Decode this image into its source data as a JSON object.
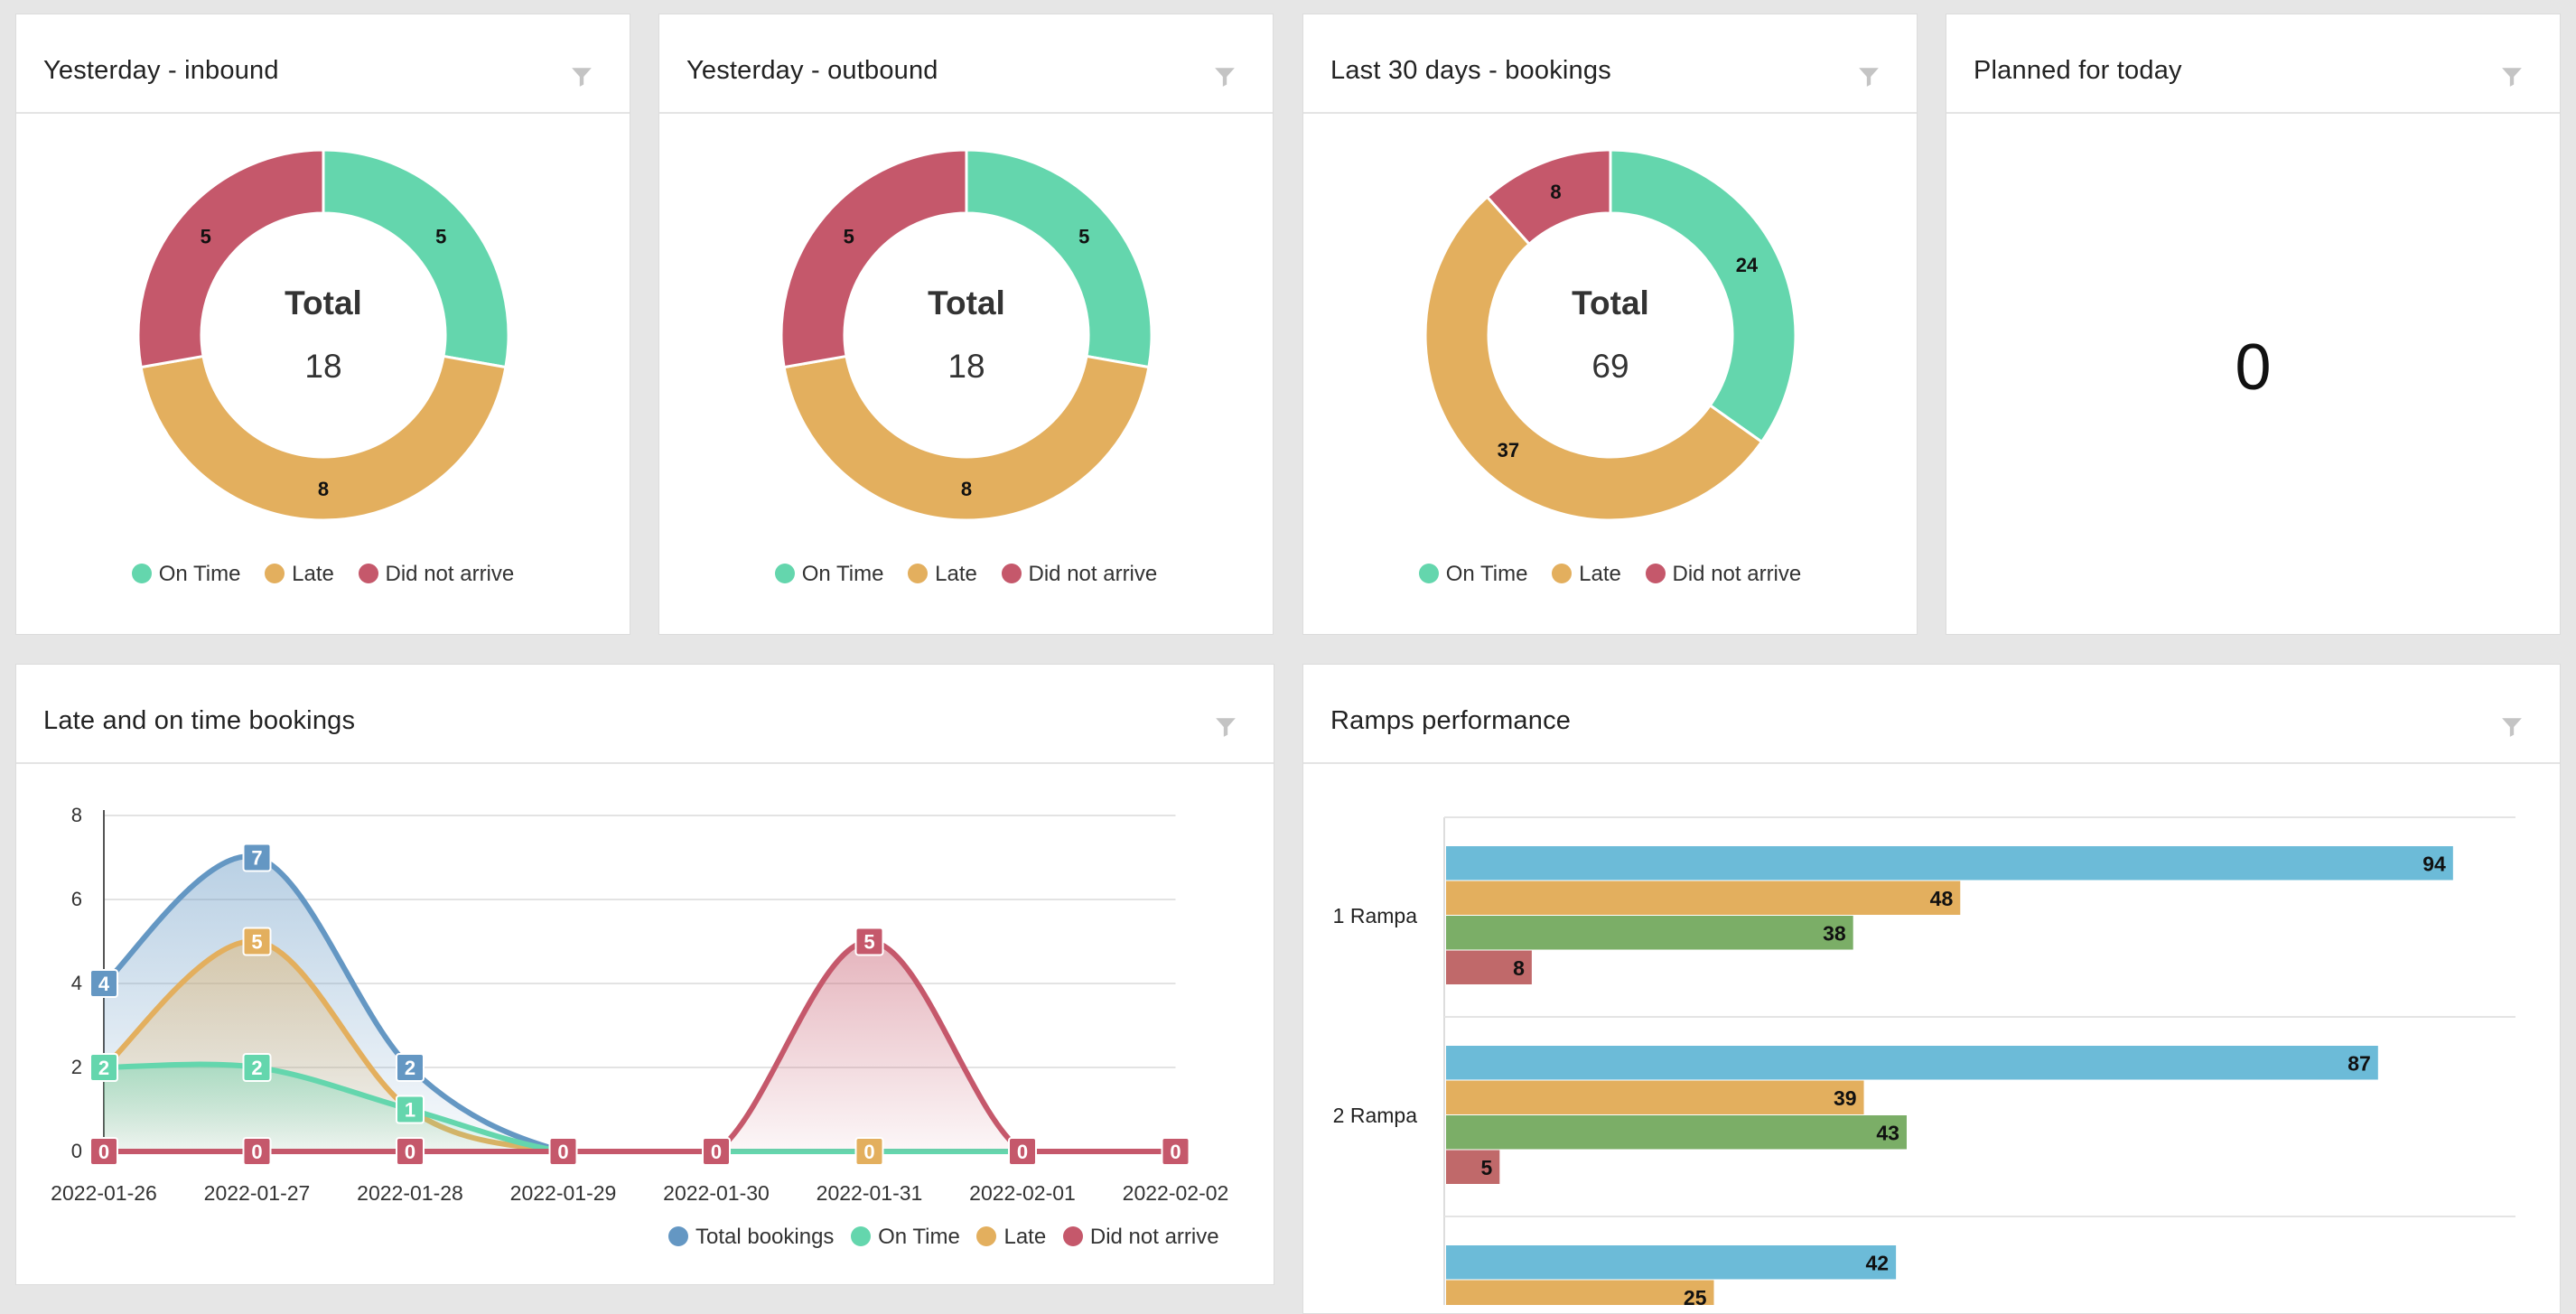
{
  "colors": {
    "on_time": "#64d6ad",
    "late": "#e3af5e",
    "did_not_arrive": "#c5586b",
    "total": "#6497c3",
    "ramp_blue": "#6cbbd8",
    "ramp_orange": "#e3af5e",
    "ramp_green": "#7bae67",
    "ramp_red": "#c0696a"
  },
  "cards": {
    "inbound": {
      "title": "Yesterday - inbound",
      "total_label": "Total",
      "total_value": "18"
    },
    "outbound": {
      "title": "Yesterday - outbound",
      "total_label": "Total",
      "total_value": "18"
    },
    "bookings30": {
      "title": "Last 30 days - bookings",
      "total_label": "Total",
      "total_value": "69"
    },
    "planned": {
      "title": "Planned for today",
      "value": "0"
    },
    "late_on_time": {
      "title": "Late and on time bookings"
    },
    "ramps": {
      "title": "Ramps performance"
    }
  },
  "donut_legend": [
    "On Time",
    "Late",
    "Did not arrive"
  ],
  "line_legend": [
    "Total bookings",
    "On Time",
    "Late",
    "Did not arrive"
  ],
  "chart_data": [
    {
      "type": "pie",
      "title": "Yesterday - inbound",
      "categories": [
        "On Time",
        "Late",
        "Did not arrive"
      ],
      "values": [
        5,
        8,
        5
      ]
    },
    {
      "type": "pie",
      "title": "Yesterday - outbound",
      "categories": [
        "On Time",
        "Late",
        "Did not arrive"
      ],
      "values": [
        5,
        8,
        5
      ]
    },
    {
      "type": "pie",
      "title": "Last 30 days - bookings",
      "categories": [
        "On Time",
        "Late",
        "Did not arrive"
      ],
      "values": [
        24,
        37,
        8
      ]
    },
    {
      "type": "area",
      "title": "Late and on time bookings",
      "categories": [
        "2022-01-26",
        "2022-01-27",
        "2022-01-28",
        "2022-01-29",
        "2022-01-30",
        "2022-01-31",
        "2022-02-01",
        "2022-02-02"
      ],
      "ylim": [
        0,
        8
      ],
      "yticks": [
        0,
        2,
        4,
        6,
        8
      ],
      "grid": true,
      "legend_position": "bottom-right",
      "series": [
        {
          "name": "Total bookings",
          "values": [
            4,
            7,
            2,
            0,
            0,
            0,
            0,
            0
          ]
        },
        {
          "name": "On Time",
          "values": [
            2,
            2,
            1,
            0,
            0,
            0,
            0,
            0
          ]
        },
        {
          "name": "Late",
          "values": [
            2,
            5,
            1,
            0,
            0,
            0,
            0,
            0
          ]
        },
        {
          "name": "Did not arrive",
          "values": [
            0,
            0,
            0,
            0,
            0,
            5,
            0,
            0
          ]
        }
      ]
    },
    {
      "type": "bar",
      "orientation": "horizontal",
      "title": "Ramps performance",
      "categories": [
        "1 Rampa",
        "2 Rampa",
        ""
      ],
      "xlim": [
        0,
        100
      ],
      "series": [
        {
          "values": [
            94,
            87,
            42
          ]
        },
        {
          "values": [
            48,
            39,
            25
          ]
        },
        {
          "values": [
            38,
            43,
            null
          ]
        },
        {
          "values": [
            8,
            5,
            null
          ]
        }
      ]
    }
  ]
}
